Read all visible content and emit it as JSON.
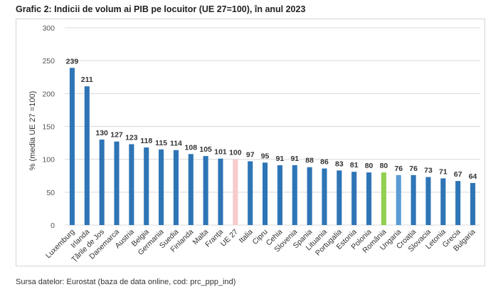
{
  "title": "Grafic 2: Indicii de volum ai PIB pe locuitor  (UE 27=100), în anul 2023",
  "source": "Sursa datelor: Eurostat (baza de data online, cod: prc_ppp_ind)",
  "colors": {
    "default_bar": "#2e75b6",
    "eu_bar": "#f8cbcb",
    "romania_bar": "#92d050",
    "hungary_bar": "#5b9bd5",
    "grid": "#d9d9d9"
  },
  "chart_data": {
    "type": "bar",
    "title": "Grafic 2: Indicii de volum ai PIB pe locuitor  (UE 27=100), în anul 2023",
    "xlabel": "",
    "ylabel": "% (media  UE 27 =100)",
    "ylim": [
      0,
      300
    ],
    "yticks": [
      0,
      50,
      100,
      150,
      200,
      250,
      300
    ],
    "grid": true,
    "categories": [
      "Luxemburg",
      "Irlanda",
      "Țările de Jos",
      "Danemarca",
      "Austria",
      "Belgia",
      "Germania",
      "Suedia",
      "Finlanda",
      "Malta",
      "Franța",
      "UE 27",
      "Italia",
      "Cipru",
      "Cehia",
      "Slovenia",
      "Spania",
      "Lituania",
      "Portugalia",
      "Estonia",
      "Polonia",
      "România",
      "Ungaria",
      "Croația",
      "Slovacia",
      "Letonia",
      "Grecia",
      "Bulgaria"
    ],
    "values": [
      239,
      211,
      130,
      127,
      123,
      118,
      115,
      114,
      108,
      105,
      101,
      100,
      97,
      95,
      91,
      91,
      88,
      86,
      83,
      81,
      80,
      80,
      76,
      76,
      73,
      71,
      67,
      64
    ],
    "highlight": {
      "UE 27": "eu_bar",
      "România": "romania_bar",
      "Ungaria": "hungary_bar"
    }
  }
}
